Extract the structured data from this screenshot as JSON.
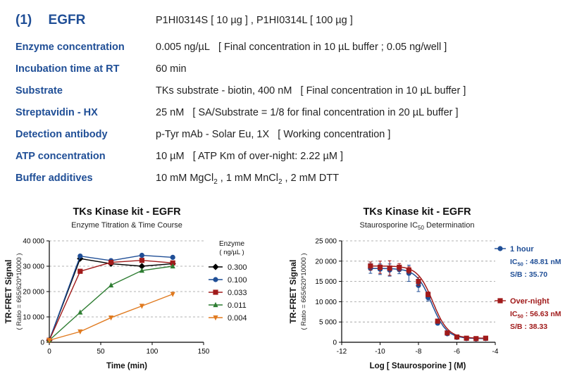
{
  "section": {
    "number": "(1)",
    "name": "EGFR",
    "catalog": "P1HI0314S [ 10 µg ] , P1HI0314L [ 100 µg ]"
  },
  "rows": [
    {
      "label": "Enzyme concentration",
      "value": "0.005 ng/µL",
      "note": "[ Final concentration in 10 µL buffer ; 0.05 ng/well ]"
    },
    {
      "label": "Incubation time at RT",
      "value": "60 min",
      "note": ""
    },
    {
      "label": "Substrate",
      "value": "TKs substrate - biotin, 400 nM",
      "note": "[ Final concentration in 10 µL buffer ]"
    },
    {
      "label": "Streptavidin - HX",
      "value": "25 nM",
      "note": "[ SA/Substrate = 1/8 for final concentration in 20 µL buffer ]"
    },
    {
      "label": "Detection antibody",
      "value": "p-Tyr mAb - Solar Eu, 1X",
      "note": "[ Working concentration ]"
    },
    {
      "label": "ATP concentration",
      "value": "10 µM",
      "note": "[ ATP Km of over-night: 2.22 µM ]"
    },
    {
      "label": "Buffer additives",
      "value_parts": [
        "10 mM MgCl",
        "2",
        " , 1 mM MnCl",
        "2",
        " , 2 mM DTT"
      ]
    }
  ],
  "chart_data": [
    {
      "type": "line",
      "title": "TKs Kinase kit  -  EGFR",
      "subtitle": "Enzyme Titration & Time Course",
      "xlabel": "Time  (min)",
      "ylabel": "TR-FRET Signal",
      "ylabel2": "( Ratio = 665/620*10000 )",
      "xlim": [
        0,
        150
      ],
      "ylim": [
        0,
        40000
      ],
      "xticks": [
        0,
        50,
        100,
        150
      ],
      "yticks": [
        0,
        10000,
        20000,
        30000,
        40000
      ],
      "ytick_labels": [
        "0",
        "10 000",
        "20 000",
        "30 000",
        "40 000"
      ],
      "legend_title": "Enzyme",
      "legend_unit": "( ng/µL )",
      "x": [
        0,
        30,
        60,
        90,
        120
      ],
      "series": [
        {
          "name": "0.300",
          "color": "#000000",
          "marker": "diamond",
          "values": [
            800,
            33000,
            31000,
            30000,
            31000
          ]
        },
        {
          "name": "0.100",
          "color": "#1f4e96",
          "marker": "circle",
          "values": [
            800,
            34000,
            32200,
            34300,
            33500
          ]
        },
        {
          "name": "0.033",
          "color": "#a01a1a",
          "marker": "square",
          "values": [
            800,
            28000,
            31500,
            32300,
            31300
          ]
        },
        {
          "name": "0.011",
          "color": "#2e7d32",
          "marker": "triangle",
          "values": [
            800,
            11800,
            22500,
            28300,
            30000
          ]
        },
        {
          "name": "0.004",
          "color": "#e07a1f",
          "marker": "triangle-down",
          "values": [
            800,
            4200,
            9700,
            14300,
            19000
          ]
        }
      ]
    },
    {
      "type": "scatter",
      "title": "TKs Kinase kit  -  EGFR",
      "subtitle_pre": "Staurosporine IC",
      "subtitle_sub": "50",
      "subtitle_post": " Determination",
      "xlabel": "Log [ Staurosporine ]  (M)",
      "ylabel": "TR-FRET Signal",
      "ylabel2": "( Ratio = 665/620*10000 )",
      "xlim": [
        -12,
        -4
      ],
      "ylim": [
        0,
        25000
      ],
      "xticks": [
        -12,
        -10,
        -8,
        -6,
        -4
      ],
      "yticks": [
        0,
        5000,
        10000,
        15000,
        20000,
        25000
      ],
      "ytick_labels": [
        "0",
        "5 000",
        "10 000",
        "15 000",
        "20 000",
        "25 000"
      ],
      "x": [
        -10.5,
        -10,
        -9.5,
        -9,
        -8.5,
        -8,
        -7.5,
        -7,
        -6.5,
        -6,
        -5.5,
        -5,
        -4.5
      ],
      "series": [
        {
          "name": "1 hour",
          "color": "#1f4e96",
          "marker": "circle",
          "values": [
            18200,
            18000,
            17800,
            17900,
            17000,
            14000,
            11000,
            4700,
            2100,
            1200,
            900,
            800,
            900
          ],
          "errors": [
            1200,
            1300,
            1500,
            1000,
            2000,
            1500,
            800,
            400,
            300,
            200,
            200,
            150,
            150
          ],
          "ic50": 48.81,
          "sb": 35.7,
          "ic_label_pre": "IC",
          "ic_label_sub": "50",
          "ic_label_post": " : 48.81 nM",
          "sb_label": "S/B : 35.70"
        },
        {
          "name": "Over-night",
          "color": "#a01a1a",
          "marker": "square",
          "values": [
            18800,
            18500,
            18300,
            18500,
            17800,
            15000,
            11800,
            5200,
            2300,
            1300,
            1000,
            900,
            1000
          ],
          "errors": [
            1000,
            1500,
            1800,
            900,
            800,
            1000,
            600,
            500,
            300,
            200,
            150,
            150,
            150
          ],
          "ic50": 56.63,
          "sb": 38.33,
          "ic_label_pre": "IC",
          "ic_label_sub": "50",
          "ic_label_post": " : 56.63 nM",
          "sb_label": "S/B : 38.33"
        }
      ]
    }
  ]
}
